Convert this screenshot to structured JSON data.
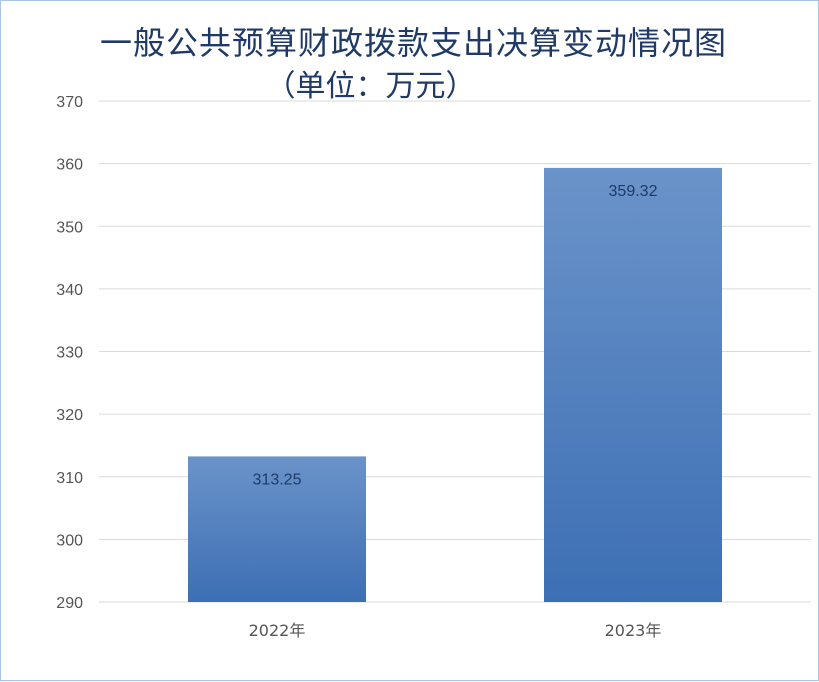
{
  "chart_data": {
    "type": "bar",
    "title_line1": "一般公共预算财政拨款支出决算变动情况图",
    "title_line2": "（单位：万元）",
    "categories": [
      "2022年",
      "2023年"
    ],
    "values": [
      313.25,
      359.32
    ],
    "data_labels": [
      "313.25",
      "359.32"
    ],
    "ylim": [
      290,
      370
    ],
    "yticks": [
      290,
      300,
      310,
      320,
      330,
      340,
      350,
      360,
      370
    ],
    "grid": true,
    "bar_color": "#4a7fc1"
  }
}
